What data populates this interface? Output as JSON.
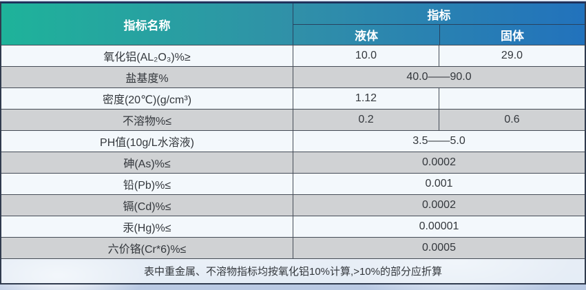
{
  "colors": {
    "header_gradient_left": "#1eb39a",
    "header_gradient_mid": "#3090a8",
    "header_gradient_right": "#2272bc",
    "header_text": "#ffffff",
    "row_light": "#f3f8fc",
    "row_gray": "#d0d2d4",
    "border_dark": "#444b55",
    "text_color": "#33373c"
  },
  "table": {
    "header": {
      "name_column_label": "指标名称",
      "value_group_label": "指标",
      "sub_columns": [
        "液体",
        "固体"
      ]
    },
    "rows": [
      {
        "label": "氧化铝(AL₂O₃)%≥",
        "liquid": "10.0",
        "solid": "29.0"
      },
      {
        "label": "盐基度%",
        "value": "40.0——90.0"
      },
      {
        "label": "密度(20℃)(g/cm³)",
        "liquid": "1.12",
        "solid": ""
      },
      {
        "label": "不溶物%≤",
        "liquid": "0.2",
        "solid": "0.6"
      },
      {
        "label": "PH值(10g/L水溶液)",
        "value": "3.5——5.0"
      },
      {
        "label": "砷(As)%≤",
        "value": "0.0002"
      },
      {
        "label": "铅(Pb)%≤",
        "value": "0.001"
      },
      {
        "label": "镉(Cd)%≤",
        "value": "0.0002"
      },
      {
        "label": "汞(Hg)%≤",
        "value": "0.00001"
      },
      {
        "label": "六价铬(Cr*6)%≤",
        "value": "0.0005"
      }
    ],
    "footnote": "表中重金属、不溶物指标均按氧化铝10%计算,>10%的部分应折算"
  }
}
